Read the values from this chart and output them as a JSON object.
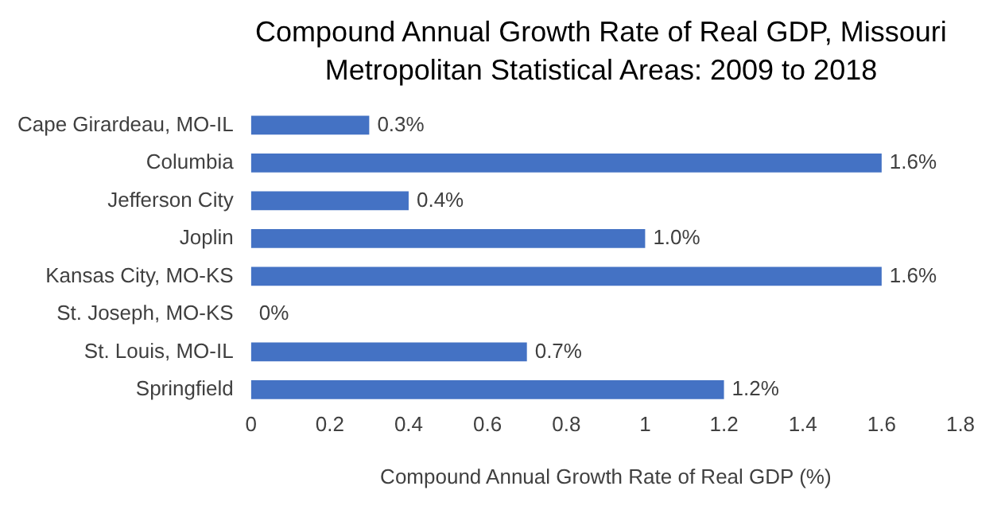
{
  "chart_data": {
    "type": "bar",
    "orientation": "horizontal",
    "title": "Compound Annual Growth Rate of Real GDP, Missouri Metropolitan Statistical Areas: 2009 to 2018",
    "xlabel": "Compound Annual Growth Rate of Real GDP (%)",
    "categories": [
      "Cape Girardeau, MO-IL",
      "Columbia",
      "Jefferson City",
      "Joplin",
      "Kansas City, MO-KS",
      "St. Joseph, MO-KS",
      "St. Louis, MO-IL",
      "Springfield"
    ],
    "values": [
      0.3,
      1.6,
      0.4,
      1.0,
      1.6,
      0,
      0.7,
      1.2
    ],
    "value_labels": [
      "0.3%",
      "1.6%",
      "0.4%",
      "1.0%",
      "1.6%",
      "0%",
      "0.7%",
      "1.2%"
    ],
    "color": "#4472c4",
    "xlim": [
      0,
      1.8
    ],
    "xticks": [
      0,
      0.2,
      0.4,
      0.6,
      0.8,
      1,
      1.2,
      1.4,
      1.6,
      1.8
    ],
    "grid": false,
    "legend": false
  }
}
